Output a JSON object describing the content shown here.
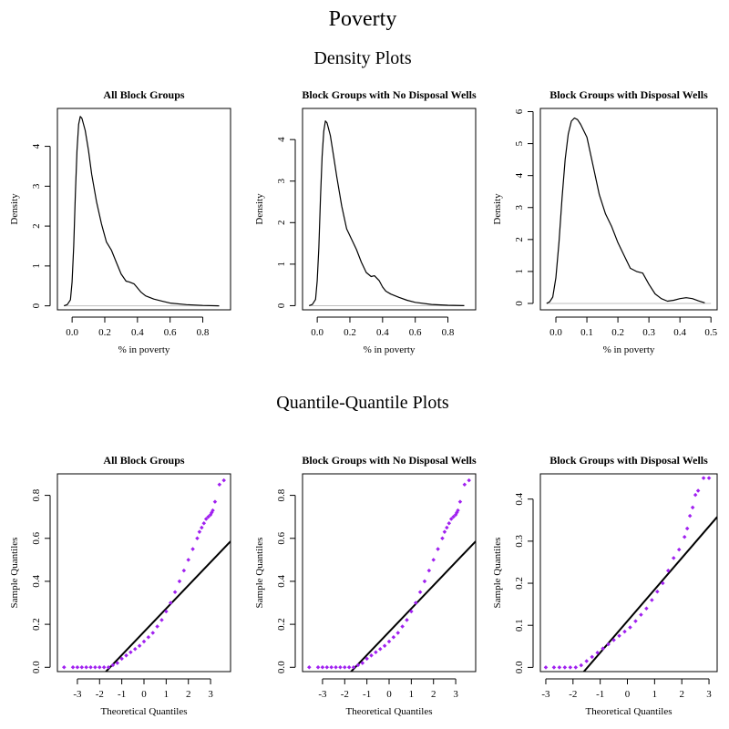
{
  "figure": {
    "title": "Poverty",
    "density_section_title": "Density Plots",
    "qq_section_title": "Quantile-Quantile Plots"
  },
  "colors": {
    "density_line": "#000000",
    "baseline": "#bebebe",
    "qq_points": "#a020f0",
    "qq_line": "#000000"
  },
  "chart_data": [
    {
      "type": "line",
      "title": "All Block Groups",
      "xlabel": "% in poverty",
      "ylabel": "Density",
      "xlim": [
        -0.09,
        0.97
      ],
      "ylim": [
        -0.1,
        4.95
      ],
      "xticks": [
        0.0,
        0.2,
        0.4,
        0.6,
        0.8
      ],
      "yticks": [
        0,
        1,
        2,
        3,
        4
      ],
      "baseline_xrange": [
        -0.05,
        0.9
      ],
      "x": [
        -0.05,
        -0.03,
        -0.01,
        0.0,
        0.01,
        0.02,
        0.03,
        0.04,
        0.05,
        0.06,
        0.08,
        0.1,
        0.12,
        0.15,
        0.18,
        0.21,
        0.24,
        0.27,
        0.3,
        0.33,
        0.35,
        0.38,
        0.4,
        0.42,
        0.45,
        0.5,
        0.55,
        0.6,
        0.7,
        0.8,
        0.9
      ],
      "y": [
        0.0,
        0.03,
        0.15,
        0.6,
        1.5,
        2.8,
        3.9,
        4.55,
        4.75,
        4.7,
        4.4,
        3.9,
        3.3,
        2.6,
        2.05,
        1.6,
        1.4,
        1.1,
        0.8,
        0.62,
        0.6,
        0.55,
        0.45,
        0.35,
        0.25,
        0.17,
        0.12,
        0.07,
        0.03,
        0.01,
        0.0
      ]
    },
    {
      "type": "line",
      "title": "Block Groups with No Disposal Wells",
      "xlabel": "% in poverty",
      "ylabel": "Density",
      "xlim": [
        -0.09,
        0.97
      ],
      "ylim": [
        -0.1,
        4.75
      ],
      "xticks": [
        0.0,
        0.2,
        0.4,
        0.6,
        0.8
      ],
      "yticks": [
        0,
        1,
        2,
        3,
        4
      ],
      "baseline_xrange": [
        -0.05,
        0.9
      ],
      "x": [
        -0.05,
        -0.03,
        -0.01,
        0.0,
        0.01,
        0.02,
        0.03,
        0.04,
        0.05,
        0.06,
        0.08,
        0.1,
        0.12,
        0.15,
        0.18,
        0.21,
        0.24,
        0.27,
        0.3,
        0.33,
        0.35,
        0.38,
        0.4,
        0.42,
        0.45,
        0.5,
        0.55,
        0.6,
        0.7,
        0.8,
        0.9
      ],
      "y": [
        0.0,
        0.03,
        0.15,
        0.6,
        1.4,
        2.6,
        3.6,
        4.2,
        4.45,
        4.4,
        4.1,
        3.6,
        3.1,
        2.4,
        1.85,
        1.6,
        1.35,
        1.05,
        0.8,
        0.7,
        0.72,
        0.6,
        0.45,
        0.35,
        0.28,
        0.2,
        0.13,
        0.08,
        0.03,
        0.01,
        0.0
      ]
    },
    {
      "type": "line",
      "title": "Block Groups with Disposal Wells",
      "xlabel": "% in poverty",
      "ylabel": "Density",
      "xlim": [
        -0.05,
        0.52
      ],
      "ylim": [
        -0.2,
        6.1
      ],
      "xticks": [
        0.0,
        0.1,
        0.2,
        0.3,
        0.4,
        0.5
      ],
      "yticks": [
        0,
        1,
        2,
        3,
        4,
        5,
        6
      ],
      "baseline_xrange": [
        -0.03,
        0.5
      ],
      "x": [
        -0.03,
        -0.02,
        -0.01,
        0.0,
        0.01,
        0.02,
        0.03,
        0.04,
        0.05,
        0.06,
        0.07,
        0.08,
        0.1,
        0.12,
        0.14,
        0.16,
        0.18,
        0.2,
        0.22,
        0.24,
        0.26,
        0.28,
        0.3,
        0.32,
        0.34,
        0.36,
        0.38,
        0.4,
        0.42,
        0.44,
        0.46,
        0.48
      ],
      "y": [
        0.0,
        0.05,
        0.2,
        0.8,
        1.9,
        3.3,
        4.5,
        5.3,
        5.7,
        5.8,
        5.75,
        5.6,
        5.2,
        4.3,
        3.4,
        2.8,
        2.4,
        1.9,
        1.5,
        1.1,
        1.0,
        0.95,
        0.6,
        0.3,
        0.15,
        0.07,
        0.1,
        0.15,
        0.18,
        0.15,
        0.08,
        0.02
      ]
    },
    {
      "type": "scatter",
      "title": "All Block Groups",
      "xlabel": "Theoretical Quantiles",
      "ylabel": "Sample Quantiles",
      "xlim": [
        -3.9,
        3.9
      ],
      "ylim": [
        -0.02,
        0.9
      ],
      "xticks": [
        -3,
        -2,
        -1,
        0,
        1,
        2,
        3
      ],
      "yticks": [
        0.0,
        0.2,
        0.4,
        0.6,
        0.8
      ],
      "qq_line": {
        "intercept": 0.165,
        "slope": 0.108
      },
      "x": [
        -3.6,
        -3.2,
        -3.0,
        -2.8,
        -2.6,
        -2.4,
        -2.2,
        -2.0,
        -1.8,
        -1.6,
        -1.4,
        -1.2,
        -1.0,
        -0.8,
        -0.6,
        -0.4,
        -0.2,
        0.0,
        0.2,
        0.4,
        0.6,
        0.8,
        1.0,
        1.2,
        1.4,
        1.6,
        1.8,
        2.0,
        2.2,
        2.4,
        2.5,
        2.6,
        2.7,
        2.8,
        2.9,
        3.0,
        3.05,
        3.1,
        3.2,
        3.4,
        3.6
      ],
      "y": [
        0.0,
        0.0,
        0.0,
        0.0,
        0.0,
        0.0,
        0.0,
        0.0,
        0.0,
        0.0,
        0.01,
        0.02,
        0.04,
        0.055,
        0.07,
        0.085,
        0.1,
        0.12,
        0.14,
        0.16,
        0.19,
        0.22,
        0.26,
        0.3,
        0.35,
        0.4,
        0.45,
        0.5,
        0.55,
        0.6,
        0.63,
        0.65,
        0.67,
        0.69,
        0.7,
        0.71,
        0.72,
        0.73,
        0.77,
        0.85,
        0.87
      ]
    },
    {
      "type": "scatter",
      "title": "Block Groups with No Disposal Wells",
      "xlabel": "Theoretical Quantiles",
      "ylabel": "Sample Quantiles",
      "xlim": [
        -3.9,
        3.9
      ],
      "ylim": [
        -0.02,
        0.9
      ],
      "xticks": [
        -3,
        -2,
        -1,
        0,
        1,
        2,
        3
      ],
      "yticks": [
        0.0,
        0.2,
        0.4,
        0.6,
        0.8
      ],
      "qq_line": {
        "intercept": 0.165,
        "slope": 0.108
      },
      "x": [
        -3.6,
        -3.2,
        -3.0,
        -2.8,
        -2.6,
        -2.4,
        -2.2,
        -2.0,
        -1.8,
        -1.6,
        -1.4,
        -1.2,
        -1.0,
        -0.8,
        -0.6,
        -0.4,
        -0.2,
        0.0,
        0.2,
        0.4,
        0.6,
        0.8,
        1.0,
        1.2,
        1.4,
        1.6,
        1.8,
        2.0,
        2.2,
        2.4,
        2.5,
        2.6,
        2.7,
        2.8,
        2.9,
        3.0,
        3.05,
        3.1,
        3.2,
        3.4,
        3.6
      ],
      "y": [
        0.0,
        0.0,
        0.0,
        0.0,
        0.0,
        0.0,
        0.0,
        0.0,
        0.0,
        0.0,
        0.01,
        0.02,
        0.04,
        0.055,
        0.07,
        0.085,
        0.1,
        0.12,
        0.14,
        0.16,
        0.19,
        0.22,
        0.26,
        0.3,
        0.35,
        0.4,
        0.45,
        0.5,
        0.55,
        0.6,
        0.63,
        0.65,
        0.67,
        0.69,
        0.7,
        0.71,
        0.72,
        0.73,
        0.77,
        0.85,
        0.87
      ]
    },
    {
      "type": "scatter",
      "title": "Block Groups with Disposal Wells",
      "xlabel": "Theoretical Quantiles",
      "ylabel": "Sample Quantiles",
      "xlim": [
        -3.2,
        3.3
      ],
      "ylim": [
        -0.01,
        0.46
      ],
      "xticks": [
        -3,
        -2,
        -1,
        0,
        1,
        2,
        3
      ],
      "yticks": [
        0.0,
        0.1,
        0.2,
        0.3,
        0.4
      ],
      "qq_line": {
        "intercept": 0.11,
        "slope": 0.075
      },
      "x": [
        -3.0,
        -2.7,
        -2.5,
        -2.3,
        -2.1,
        -1.9,
        -1.7,
        -1.5,
        -1.3,
        -1.1,
        -0.9,
        -0.7,
        -0.5,
        -0.3,
        -0.1,
        0.1,
        0.3,
        0.5,
        0.7,
        0.9,
        1.1,
        1.3,
        1.5,
        1.7,
        1.9,
        2.1,
        2.2,
        2.3,
        2.4,
        2.5,
        2.6,
        2.8,
        3.0
      ],
      "y": [
        0.0,
        0.0,
        0.0,
        0.0,
        0.0,
        0.0,
        0.005,
        0.015,
        0.025,
        0.035,
        0.045,
        0.055,
        0.065,
        0.075,
        0.085,
        0.095,
        0.11,
        0.125,
        0.14,
        0.16,
        0.18,
        0.2,
        0.23,
        0.26,
        0.28,
        0.31,
        0.33,
        0.36,
        0.38,
        0.41,
        0.42,
        0.45,
        0.45
      ]
    }
  ]
}
